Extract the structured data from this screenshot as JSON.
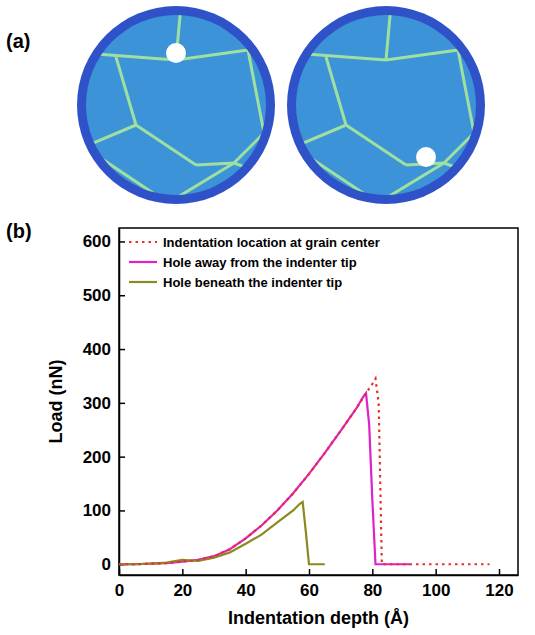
{
  "figure": {
    "panel_labels": [
      "(a)",
      "(b)"
    ]
  },
  "chart_data": {
    "type": "line",
    "xlabel": "Indentation depth (Å)",
    "ylabel": "Load (nN)",
    "xlim": [
      0,
      126
    ],
    "ylim": [
      -20,
      625
    ],
    "xticks": [
      0,
      20,
      40,
      60,
      80,
      100,
      120
    ],
    "yticks": [
      0,
      100,
      200,
      300,
      400,
      500,
      600
    ],
    "legend": "upper left",
    "series": [
      {
        "name": "Indentation location at grain center",
        "color": "#e8302a",
        "line_style": "dotted",
        "x": [
          0,
          5,
          10,
          15,
          20,
          25,
          30,
          35,
          40,
          45,
          50,
          55,
          60,
          65,
          70,
          75,
          78,
          80,
          81,
          82,
          83,
          90,
          100,
          110,
          117
        ],
        "values": [
          0,
          0,
          1,
          2,
          5,
          8,
          15,
          28,
          48,
          72,
          100,
          132,
          168,
          207,
          248,
          290,
          318,
          335,
          345,
          300,
          0,
          0,
          0,
          0,
          0
        ]
      },
      {
        "name": "Hole away from the indenter tip",
        "color": "#e020c8",
        "line_style": "solid",
        "x": [
          0,
          5,
          10,
          15,
          20,
          25,
          30,
          35,
          40,
          45,
          50,
          55,
          60,
          65,
          70,
          75,
          77,
          78,
          79,
          80,
          81,
          85,
          92
        ],
        "values": [
          0,
          0,
          1,
          2,
          5,
          8,
          15,
          28,
          48,
          72,
          100,
          132,
          168,
          207,
          248,
          290,
          310,
          318,
          260,
          120,
          0,
          0,
          0
        ]
      },
      {
        "name": "Hole beneath the indenter tip",
        "color": "#8a8a20",
        "line_style": "solid",
        "x": [
          0,
          5,
          10,
          15,
          20,
          25,
          30,
          35,
          40,
          45,
          50,
          55,
          57,
          58,
          59,
          60,
          62,
          65
        ],
        "values": [
          0,
          0,
          1,
          3,
          8,
          6,
          12,
          22,
          38,
          55,
          78,
          100,
          112,
          116,
          60,
          0,
          0,
          0
        ]
      }
    ]
  }
}
